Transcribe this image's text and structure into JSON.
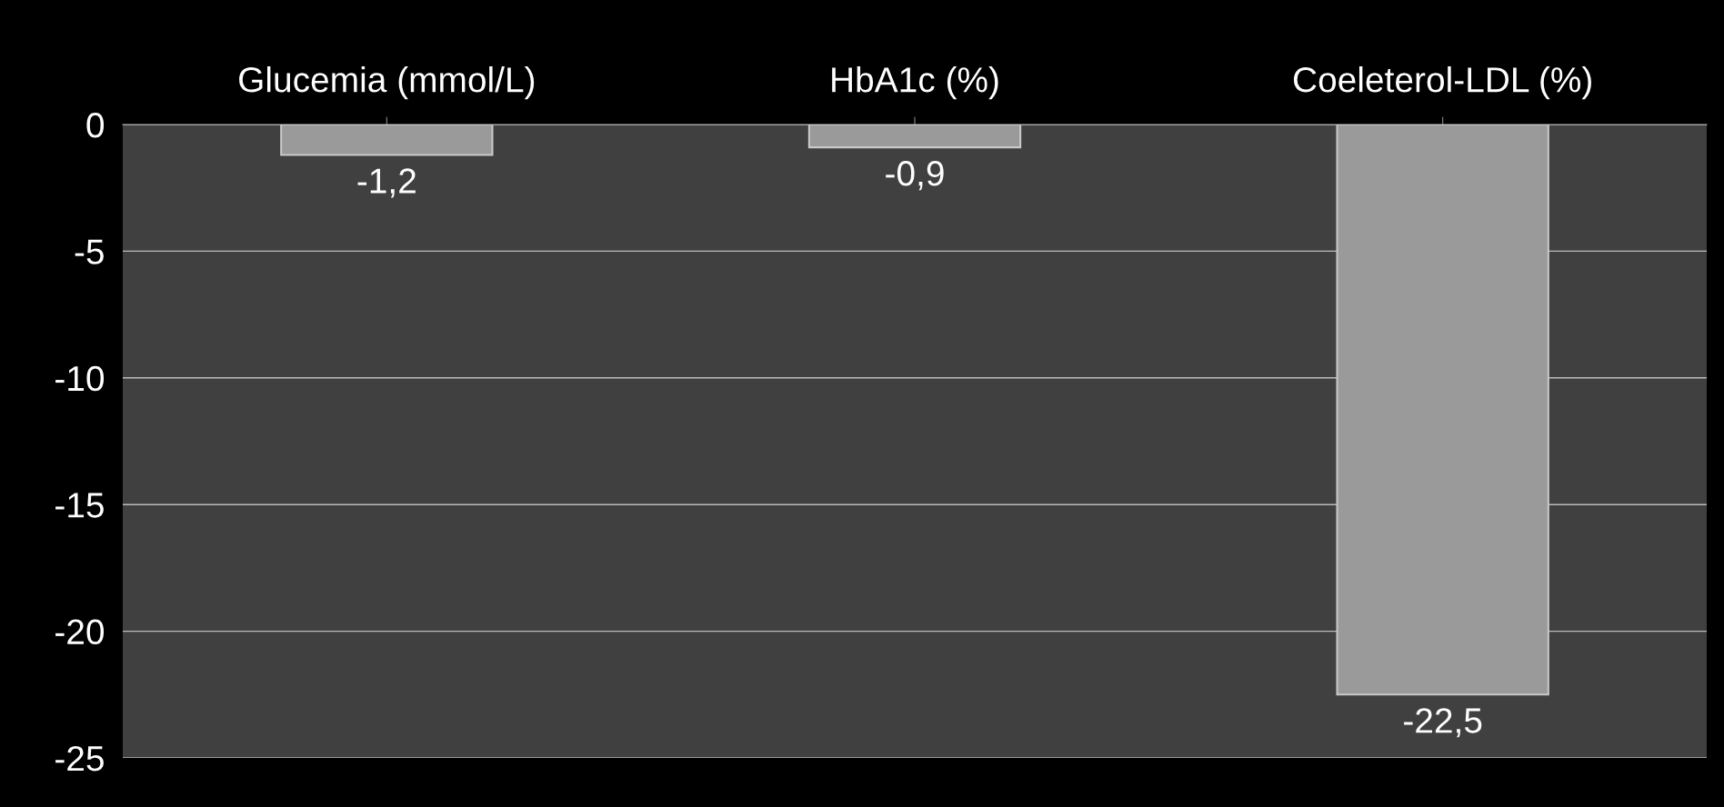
{
  "chart_data": {
    "type": "bar",
    "categories": [
      "Glucemia (mmol/L)",
      "HbA1c (%)",
      "Coeleterol-LDL (%)"
    ],
    "values": [
      -1.2,
      -0.9,
      -22.5
    ],
    "value_labels": [
      "-1,2",
      "-0,9",
      "-22,5"
    ],
    "color": "#9a9a9a",
    "ylim": [
      -25,
      0
    ],
    "yticks": [
      0,
      -5,
      -10,
      -15,
      -20,
      -25
    ],
    "grid": "y"
  }
}
